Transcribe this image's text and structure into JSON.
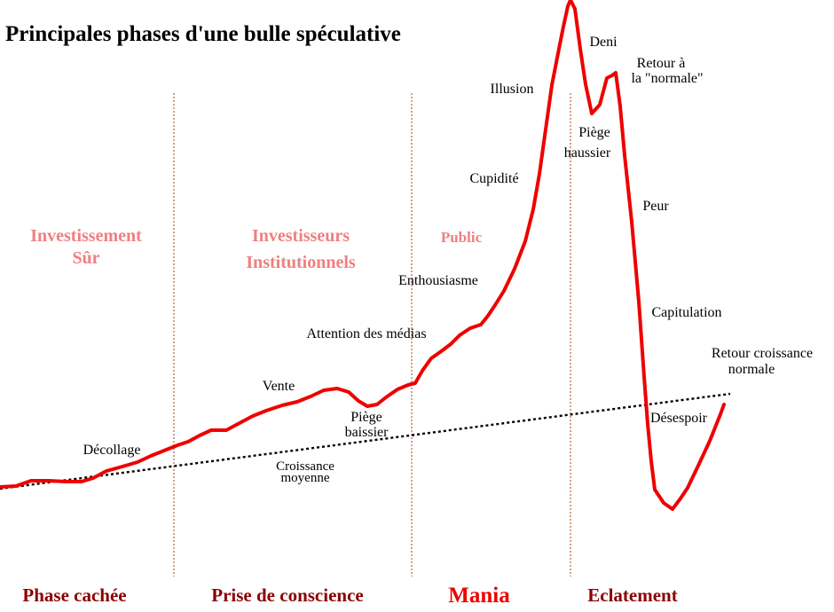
{
  "title": "Principales phases d'une bulle spéculative",
  "colors": {
    "curve": "#ee0000",
    "trend": "#000000",
    "separator": "#b5653e",
    "actor": "#f07f7f",
    "phase": "#8b0000",
    "mania": "#ee0000"
  },
  "actors": {
    "safe_line1": "Investissement",
    "safe_line2": "Sûr",
    "inst_line1": "Investisseurs",
    "inst_line2": "Institutionnels",
    "public": "Public"
  },
  "phases": {
    "hidden": "Phase cachée",
    "awareness": "Prise de conscience",
    "mania": "Mania",
    "burst": "Eclatement"
  },
  "labels": {
    "decollage": "Décollage",
    "vente": "Vente",
    "piege_baissier_1": "Piège",
    "piege_baissier_2": "baissier",
    "attention": "Attention des médias",
    "enthousiasme": "Enthousiasme",
    "cupidite": "Cupidité",
    "illusion": "Illusion",
    "deni": "Deni",
    "retour_normale_1": "Retour  à",
    "retour_normale_2": "la \"normale\"",
    "piege_haussier_1": "Piège",
    "piege_haussier_2": "haussier",
    "peur": "Peur",
    "capitulation": "Capitulation",
    "retour_croissance_1": "Retour croissance",
    "retour_croissance_2": "normale",
    "desespoir": "Désespoir"
  },
  "trend_label": {
    "line1": "Croissance",
    "line2": "moyenne"
  }
}
